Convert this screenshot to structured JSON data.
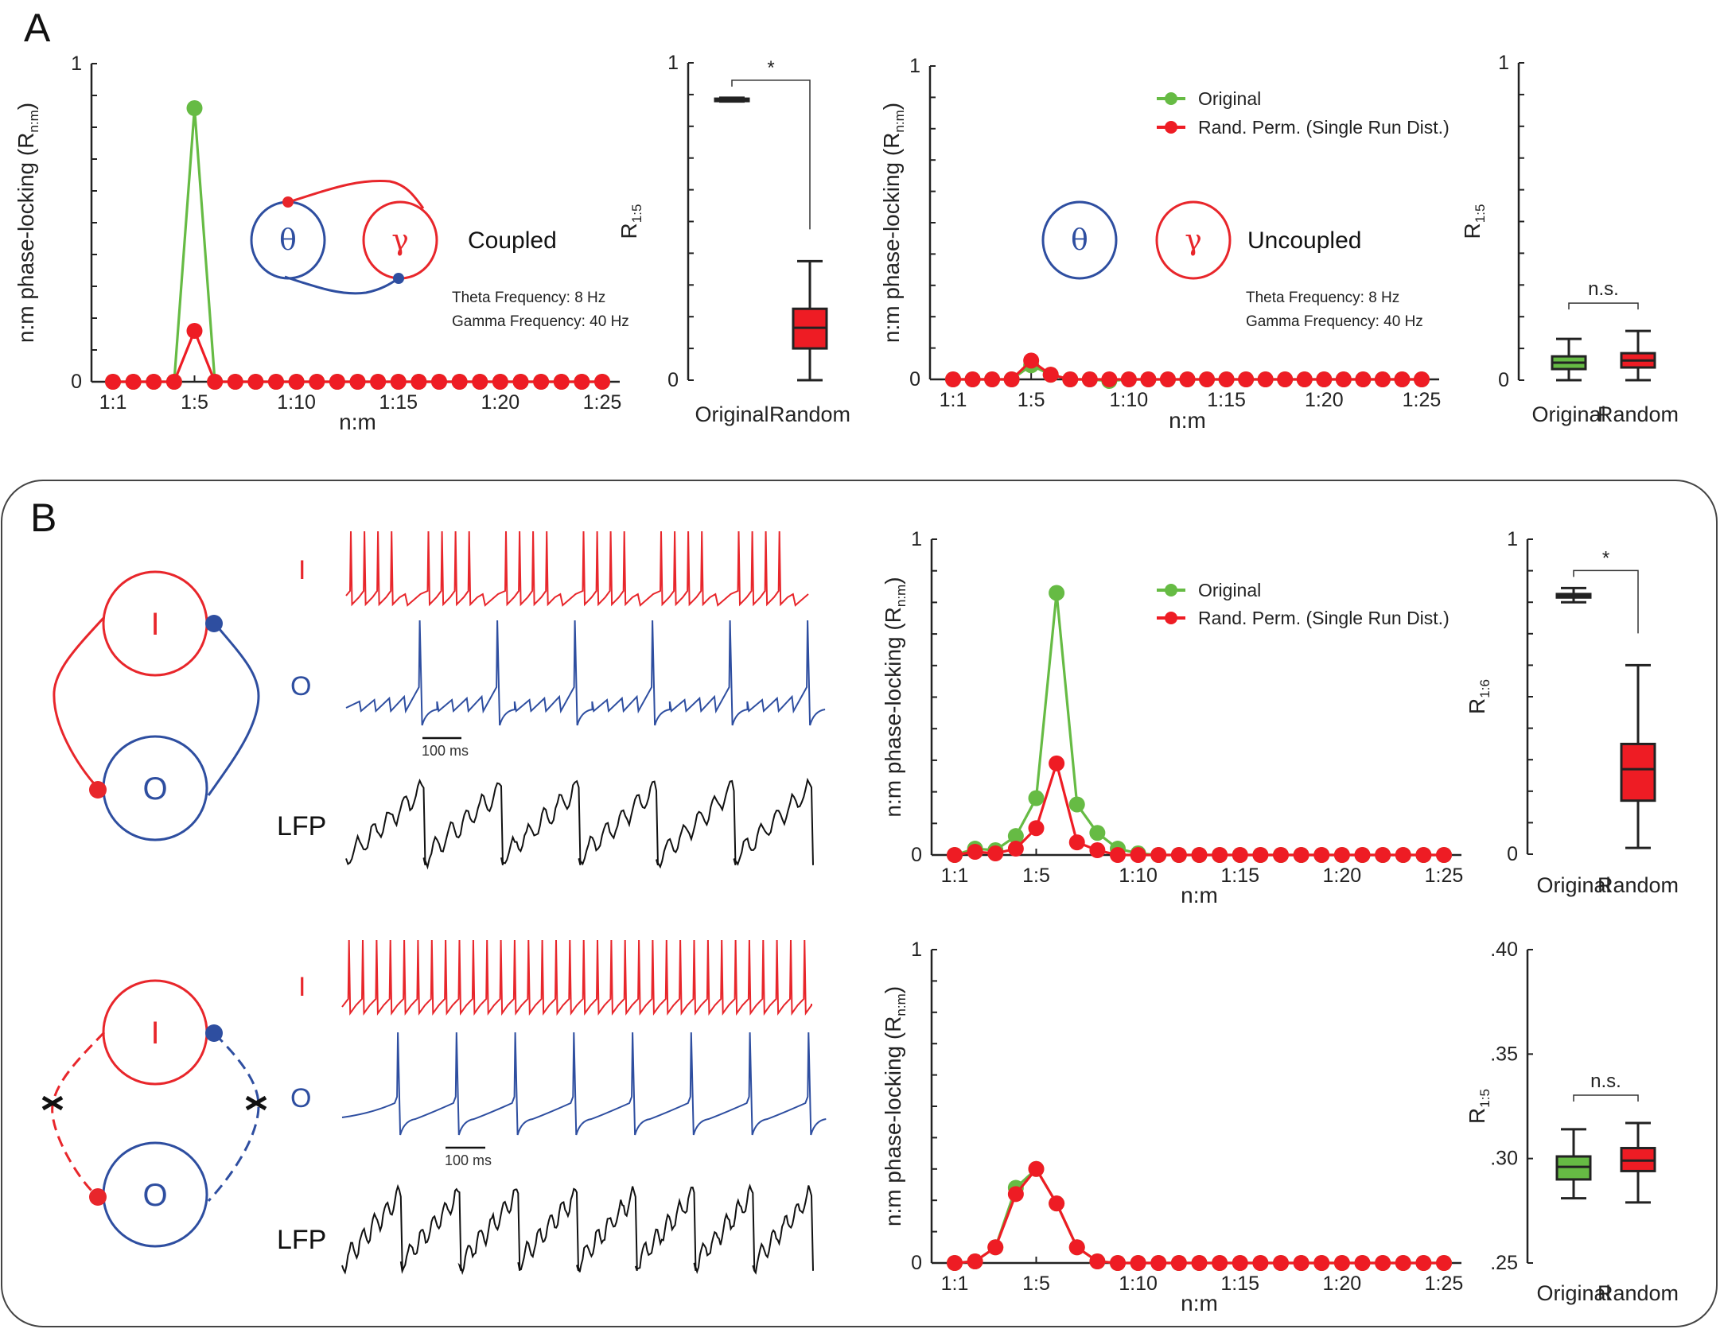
{
  "colors": {
    "original": "#66bb44",
    "random": "#ee1c24",
    "theta": "#2e4ea0",
    "gamma": "#e8262b",
    "axis": "#222222",
    "lfp": "#111111"
  },
  "panels": {
    "A": {
      "label": "A"
    },
    "B": {
      "label": "B"
    }
  },
  "legend": {
    "original": "Original",
    "random": "Rand. Perm. (Single Run Dist.)"
  },
  "diagrams": {
    "coupled": {
      "theta_symbol": "θ",
      "gamma_symbol": "γ",
      "condition": "Coupled",
      "theta_freq": "Theta Frequency: 8 Hz",
      "gamma_freq": "Gamma Frequency: 40 Hz"
    },
    "uncoupled": {
      "theta_symbol": "θ",
      "gamma_symbol": "γ",
      "condition": "Uncoupled",
      "theta_freq": "Theta Frequency: 8 Hz",
      "gamma_freq": "Gamma Frequency: 40 Hz"
    },
    "network_top": {
      "node_i": "I",
      "node_o": "O"
    },
    "network_bottom": {
      "node_i": "I",
      "node_o": "O"
    }
  },
  "traces": {
    "top": {
      "label_i": "I",
      "label_o": "O",
      "label_lfp": "LFP",
      "scale_bar": "100 ms",
      "i_spikes_per_burst": 4,
      "o_spikes": 6
    },
    "bottom": {
      "label_i": "I",
      "label_o": "O",
      "label_lfp": "LFP",
      "scale_bar": "100 ms",
      "i_spikes": 34,
      "o_spikes": 8
    }
  },
  "chart_data": [
    {
      "id": "A-coupled",
      "type": "line",
      "title": "",
      "xlabel": "n:m",
      "ylabel": "n:m phase-locking (R",
      "ylabel_sub": "n:m",
      "ylabel_close": ")",
      "ylim": [
        0,
        1
      ],
      "yticks": [
        "0",
        "1"
      ],
      "x": [
        "1:1",
        "1:2",
        "1:3",
        "1:4",
        "1:5",
        "1:6",
        "1:7",
        "1:8",
        "1:9",
        "1:10",
        "1:11",
        "1:12",
        "1:13",
        "1:14",
        "1:15",
        "1:16",
        "1:17",
        "1:18",
        "1:19",
        "1:20",
        "1:21",
        "1:22",
        "1:23",
        "1:24",
        "1:25"
      ],
      "xticks": [
        "1:1",
        "1:5",
        "1:10",
        "1:15",
        "1:20",
        "1:25"
      ],
      "series": [
        {
          "name": "Original",
          "values": [
            0,
            0,
            0,
            0,
            0.86,
            0,
            0,
            0,
            0,
            0,
            0,
            0,
            0,
            0,
            0,
            0,
            0,
            0,
            0,
            0,
            0,
            0,
            0,
            0,
            0
          ]
        },
        {
          "name": "Rand. Perm. (Single Run Dist.)",
          "values": [
            0,
            0,
            0,
            0,
            0.16,
            0,
            0,
            0,
            0,
            0,
            0,
            0,
            0,
            0,
            0,
            0,
            0,
            0,
            0,
            0,
            0,
            0,
            0,
            0,
            0
          ]
        }
      ],
      "legend": "none"
    },
    {
      "id": "A-coupled-box",
      "type": "box",
      "ylabel": "R",
      "ylabel_sub": "1:5",
      "ylim": [
        0,
        1
      ],
      "yticks": [
        "0",
        "1"
      ],
      "categories": [
        "Original",
        "Random"
      ],
      "boxes": [
        {
          "name": "Original",
          "min": 0.878,
          "q1": 0.881,
          "median": 0.884,
          "q3": 0.887,
          "max": 0.89,
          "color": "black"
        },
        {
          "name": "Random",
          "min": 0.0,
          "q1": 0.1,
          "median": 0.165,
          "q3": 0.225,
          "max": 0.375,
          "color": "red"
        }
      ],
      "significance": "*"
    },
    {
      "id": "A-uncoupled",
      "type": "line",
      "xlabel": "n:m",
      "ylabel": "n:m phase-locking (R",
      "ylabel_sub": "n:m",
      "ylabel_close": ")",
      "ylim": [
        0,
        1
      ],
      "yticks": [
        "0",
        "1"
      ],
      "x": [
        "1:1",
        "1:2",
        "1:3",
        "1:4",
        "1:5",
        "1:6",
        "1:7",
        "1:8",
        "1:9",
        "1:10",
        "1:11",
        "1:12",
        "1:13",
        "1:14",
        "1:15",
        "1:16",
        "1:17",
        "1:18",
        "1:19",
        "1:20",
        "1:21",
        "1:22",
        "1:23",
        "1:24",
        "1:25"
      ],
      "xticks": [
        "1:1",
        "1:5",
        "1:10",
        "1:15",
        "1:20",
        "1:25"
      ],
      "series": [
        {
          "name": "Original",
          "values": [
            0,
            0,
            0,
            0,
            0.045,
            0.015,
            0,
            0,
            -0.005,
            0,
            0,
            0,
            0,
            0,
            0,
            0,
            0,
            0,
            0,
            0,
            0,
            0,
            0,
            0,
            0
          ]
        },
        {
          "name": "Rand. Perm. (Single Run Dist.)",
          "values": [
            0,
            0,
            0,
            0,
            0.06,
            0.015,
            0,
            0,
            0,
            0,
            0,
            0,
            0,
            0,
            0,
            0,
            0,
            0,
            0,
            0,
            0,
            0,
            0,
            0,
            0
          ]
        }
      ],
      "legend": "top-right"
    },
    {
      "id": "A-uncoupled-box",
      "type": "box",
      "ylabel": "R",
      "ylabel_sub": "1:5",
      "ylim": [
        0,
        1
      ],
      "yticks": [
        "0",
        "1"
      ],
      "categories": [
        "Original",
        "Random"
      ],
      "boxes": [
        {
          "name": "Original",
          "min": 0.0,
          "q1": 0.035,
          "median": 0.055,
          "q3": 0.075,
          "max": 0.13,
          "color": "green"
        },
        {
          "name": "Random",
          "min": 0.0,
          "q1": 0.04,
          "median": 0.062,
          "q3": 0.085,
          "max": 0.155,
          "color": "red"
        }
      ],
      "significance": "n.s."
    },
    {
      "id": "B-coupled",
      "type": "line",
      "xlabel": "n:m",
      "ylabel": "n:m phase-locking (R",
      "ylabel_sub": "n:m",
      "ylabel_close": ")",
      "ylim": [
        0,
        1
      ],
      "yticks": [
        "0",
        "1"
      ],
      "x": [
        "1:1",
        "1:2",
        "1:3",
        "1:4",
        "1:5",
        "1:6",
        "1:7",
        "1:8",
        "1:9",
        "1:10",
        "1:11",
        "1:12",
        "1:13",
        "1:14",
        "1:15",
        "1:16",
        "1:17",
        "1:18",
        "1:19",
        "1:20",
        "1:21",
        "1:22",
        "1:23",
        "1:24",
        "1:25"
      ],
      "xticks": [
        "1:1",
        "1:5",
        "1:10",
        "1:15",
        "1:20",
        "1:25"
      ],
      "series": [
        {
          "name": "Original",
          "values": [
            0,
            0.02,
            0.015,
            0.06,
            0.18,
            0.83,
            0.16,
            0.07,
            0.02,
            0.005,
            0,
            0,
            0,
            0,
            0,
            0,
            0,
            0,
            0,
            0,
            0,
            0,
            0,
            0,
            0
          ]
        },
        {
          "name": "Rand. Perm. (Single Run Dist.)",
          "values": [
            0,
            0.01,
            0.005,
            0.02,
            0.085,
            0.29,
            0.04,
            0.015,
            0,
            0,
            0,
            0,
            0,
            0,
            0,
            0,
            0,
            0,
            0,
            0,
            0,
            0,
            0,
            0,
            0
          ]
        }
      ],
      "legend": "top-right"
    },
    {
      "id": "B-coupled-box",
      "type": "box",
      "ylabel": "R",
      "ylabel_sub": "1:6",
      "ylim": [
        0,
        1
      ],
      "yticks": [
        "0",
        "1"
      ],
      "categories": [
        "Original",
        "Random"
      ],
      "boxes": [
        {
          "name": "Original",
          "min": 0.8,
          "q1": 0.815,
          "median": 0.82,
          "q3": 0.826,
          "max": 0.845,
          "color": "black"
        },
        {
          "name": "Random",
          "min": 0.02,
          "q1": 0.17,
          "median": 0.27,
          "q3": 0.35,
          "max": 0.6,
          "color": "red"
        }
      ],
      "significance": "*"
    },
    {
      "id": "B-uncoupled",
      "type": "line",
      "xlabel": "n:m",
      "ylabel": "n:m phase-locking (R",
      "ylabel_sub": "n:m",
      "ylabel_close": ")",
      "ylim": [
        0,
        1
      ],
      "yticks": [
        "0",
        "1"
      ],
      "x": [
        "1:1",
        "1:2",
        "1:3",
        "1:4",
        "1:5",
        "1:6",
        "1:7",
        "1:8",
        "1:9",
        "1:10",
        "1:11",
        "1:12",
        "1:13",
        "1:14",
        "1:15",
        "1:16",
        "1:17",
        "1:18",
        "1:19",
        "1:20",
        "1:21",
        "1:22",
        "1:23",
        "1:24",
        "1:25"
      ],
      "xticks": [
        "1:1",
        "1:5",
        "1:10",
        "1:15",
        "1:20",
        "1:25"
      ],
      "series": [
        {
          "name": "Original",
          "values": [
            0,
            0.005,
            0.05,
            0.24,
            0.3,
            0.19,
            0.05,
            0.005,
            0,
            0,
            0,
            0,
            0,
            0,
            0,
            0,
            0,
            0,
            0,
            0,
            0,
            0,
            0,
            0,
            0
          ]
        },
        {
          "name": "Rand. Perm. (Single Run Dist.)",
          "values": [
            0,
            0.005,
            0.05,
            0.22,
            0.3,
            0.19,
            0.05,
            0.005,
            0,
            0,
            0,
            0,
            0,
            0,
            0,
            0,
            0,
            0,
            0,
            0,
            0,
            0,
            0,
            0,
            0
          ]
        }
      ],
      "legend": "none"
    },
    {
      "id": "B-uncoupled-box",
      "type": "box",
      "ylabel": "R",
      "ylabel_sub": "1:5",
      "ylim": [
        0.25,
        0.4
      ],
      "yticks": [
        ".25",
        ".30",
        ".35",
        ".40"
      ],
      "categories": [
        "Original",
        "Random"
      ],
      "boxes": [
        {
          "name": "Original",
          "min": 0.281,
          "q1": 0.29,
          "median": 0.296,
          "q3": 0.301,
          "max": 0.314,
          "color": "green"
        },
        {
          "name": "Random",
          "min": 0.279,
          "q1": 0.294,
          "median": 0.299,
          "q3": 0.305,
          "max": 0.317,
          "color": "red"
        }
      ],
      "significance": "n.s."
    }
  ]
}
